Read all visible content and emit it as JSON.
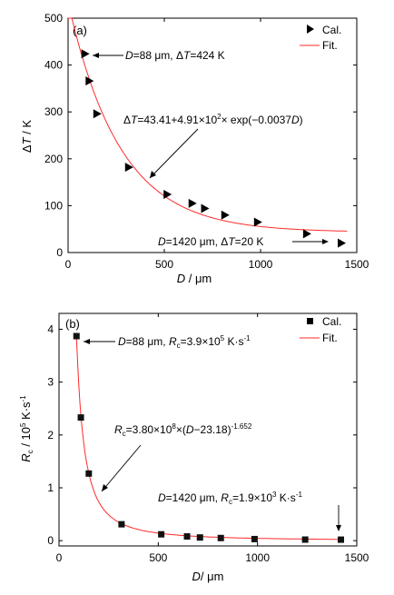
{
  "chart_data": [
    {
      "type": "scatter",
      "panel_label": "(a)",
      "xlabel_parts": [
        "D",
        " / μm"
      ],
      "ylabel_parts": [
        "Δ",
        "T",
        " / K"
      ],
      "xlim": [
        0,
        1500
      ],
      "ylim": [
        0,
        500
      ],
      "xticks": [
        0,
        500,
        1000,
        1500
      ],
      "yticks": [
        0,
        100,
        200,
        300,
        400,
        500
      ],
      "marker": "triangle-right",
      "series": [
        {
          "name": "Cal.",
          "x": [
            88,
            110,
            150,
            315,
            515,
            645,
            710,
            815,
            985,
            1240,
            1420
          ],
          "y": [
            424,
            366,
            296,
            182,
            124,
            105,
            94,
            80,
            65,
            40,
            20
          ]
        }
      ],
      "fit": {
        "name": "Fit.",
        "a": 43.41,
        "b": 491,
        "k": -0.0037,
        "x_range": [
          0,
          1450
        ],
        "color": "#ff2a2a"
      },
      "annotations": [
        {
          "parts": [
            "D",
            "=88 μm, Δ",
            "T",
            "=424 K"
          ]
        },
        {
          "parts": [
            "Δ",
            "T",
            "=43.41+4.91×10",
            "2",
            "× exp(−0.0037",
            "D",
            ")"
          ]
        },
        {
          "parts": [
            "D",
            "=1420 μm, Δ",
            "T",
            "=20 K"
          ]
        }
      ],
      "legend": "top-right"
    },
    {
      "type": "scatter",
      "panel_label": "(b)",
      "xlabel_parts": [
        "D",
        "/ μm"
      ],
      "ylabel_parts": [
        "R",
        "c",
        " / 10",
        "5",
        " K·s",
        "-1"
      ],
      "xlim": [
        0,
        1500
      ],
      "ylim": [
        -0.1,
        4.3
      ],
      "xticks": [
        0,
        500,
        1000,
        1500
      ],
      "yticks": [
        0,
        1,
        2,
        3,
        4
      ],
      "marker": "square",
      "series": [
        {
          "name": "Cal.",
          "x": [
            88,
            110,
            150,
            315,
            515,
            645,
            710,
            815,
            985,
            1240,
            1420
          ],
          "y": [
            3.87,
            2.33,
            1.27,
            0.31,
            0.12,
            0.08,
            0.06,
            0.05,
            0.03,
            0.02,
            0.019
          ]
        }
      ],
      "fit": {
        "name": "Fit.",
        "a": 380000000,
        "d0": 23.18,
        "p": -1.652,
        "x_range": [
          88,
          1420
        ],
        "color": "#ff2a2a"
      },
      "annotations": [
        {
          "parts": [
            "D",
            "=88 μm, ",
            "R",
            "c",
            "=3.9×10",
            "5",
            " K·s",
            "-1"
          ]
        },
        {
          "parts": [
            "R",
            "c",
            "=3.80×10",
            "8",
            "×(",
            "D",
            "−23.18)",
            "-1.652"
          ]
        },
        {
          "parts": [
            "D",
            "=1420 μm, ",
            "R",
            "c",
            "=1.9×10",
            "3",
            " K·s",
            "-1"
          ]
        }
      ],
      "legend": "top-right"
    }
  ]
}
